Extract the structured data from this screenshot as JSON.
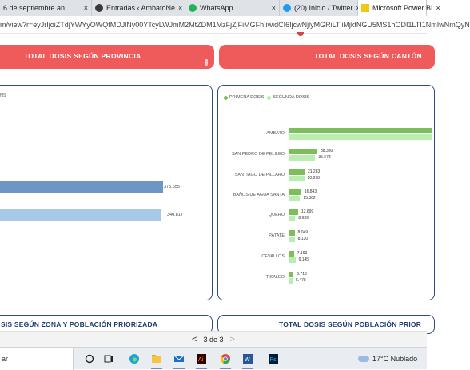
{
  "browser": {
    "tabs": [
      {
        "title": "6 de septiembre an",
        "close": "×",
        "active": false
      },
      {
        "title": "Entradas ‹ AmbatoNe",
        "close": "×",
        "active": false
      },
      {
        "title": "WhatsApp",
        "close": "×",
        "active": false
      },
      {
        "title": "(20) Inicio / Twitter",
        "close": "×",
        "active": false
      },
      {
        "title": "Microsoft Power BI",
        "close": "×",
        "active": true
      }
    ],
    "url": "m/view?r=eyJrIjoiZTdjYWYyOWQtMDJlNy00YTcyLWJmM2MtZDM1MzFjZjFiMGFhIiwidCI6IjcwNjlyMGRiLTliMjktNGU5MS1hODI1LTI1NmIwNmQyN"
  },
  "report": {
    "left_title": "TOTAL DOSIS SEGÚN PROVINCIA",
    "right_title": "TOTAL DOSIS SEGÚN CANTÓN",
    "left_legend_fragment": "NS",
    "left_bars": [
      {
        "value": 375655,
        "label": "375.655",
        "color": "#6d96c4"
      },
      {
        "value": 340817,
        "label": "340.817",
        "color": "#a8c8e8"
      }
    ],
    "right_legend": [
      {
        "label": "PRIMERA DOSIS",
        "color": "#7cbf5a"
      },
      {
        "label": "SEGUNDA DOSIS",
        "color": "#b9eeb0"
      }
    ],
    "cantones": [
      {
        "name": "AMBATO",
        "primera": null,
        "segunda": null,
        "primera_label": "",
        "segunda_label": ""
      },
      {
        "name": "SAN PEDRO DE PELILEO",
        "primera": 38330,
        "segunda": 35578,
        "primera_label": "38.330",
        "segunda_label": "35.578"
      },
      {
        "name": "SANTIAGO DE PILLARO",
        "primera": 21283,
        "segunda": 20878,
        "primera_label": "21.283",
        "segunda_label": "20.878"
      },
      {
        "name": "BAÑOS DE AGUA SANTA",
        "primera": 16843,
        "segunda": 15362,
        "primera_label": "16.843",
        "segunda_label": "15.362"
      },
      {
        "name": "QUERO",
        "primera": 12699,
        "segunda": 8939,
        "primera_label": "12.699",
        "segunda_label": "8.939"
      },
      {
        "name": "PATATE",
        "primera": 8049,
        "segunda": 8130,
        "primera_label": "8.049",
        "segunda_label": "8.130"
      },
      {
        "name": "CEVALLOS",
        "primera": 7163,
        "segunda": 9145,
        "primera_label": "7.163",
        "segunda_label": "9.145"
      },
      {
        "name": "TISALEO",
        "primera": 6718,
        "segunda": 5478,
        "primera_label": "6.718",
        "segunda_label": "5.478"
      }
    ],
    "bottom_left_title": "SIS SEGÚN ZONA Y POBLACIÓN PRIORIZADA",
    "bottom_right_title": "TOTAL DOSIS SEGÚN POBLACIÓN PRIOR"
  },
  "pager": {
    "prev": "<",
    "label": "3 de 3",
    "next": ">"
  },
  "taskbar": {
    "search_text": "ar",
    "weather": "17°C  Nublado",
    "icons": [
      "cortana-icon",
      "task-view-icon",
      "edge-icon",
      "file-explorer-icon",
      "mail-icon",
      "illustrator-icon",
      "chrome-icon",
      "word-icon",
      "photoshop-icon"
    ]
  }
}
